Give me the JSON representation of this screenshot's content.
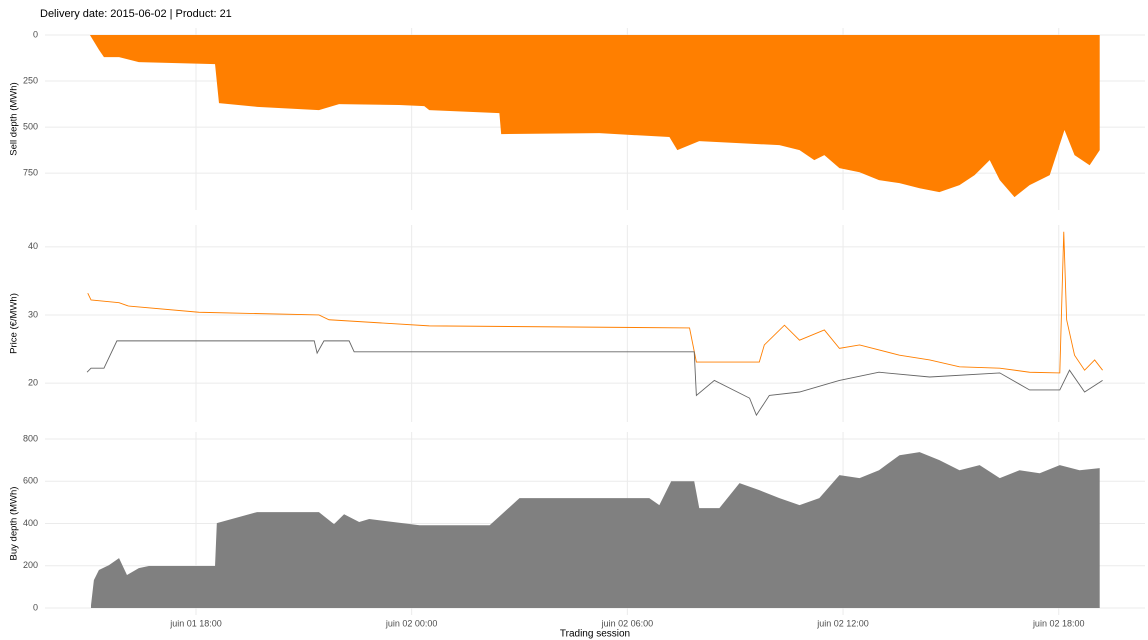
{
  "chart_data": [
    {
      "type": "area",
      "title": "Delivery date: 2015-06-02 | Product: 21",
      "ylabel": "Sell depth (MWh)",
      "color": "#ff7f00",
      "x": [
        15.05,
        15.3,
        15.44,
        15.86,
        16.41,
        18.53,
        18.64,
        19.7,
        21.42,
        21.98,
        23.65,
        24.35,
        24.49,
        26.44,
        26.49,
        29.22,
        31.17,
        31.39,
        32.0,
        34.23,
        34.79,
        35.2,
        35.48,
        35.9,
        36.46,
        37.0,
        37.57,
        38.13,
        38.68,
        39.24,
        39.66,
        40.08,
        40.36,
        40.77,
        41.19,
        41.75,
        42.16,
        42.44,
        42.86,
        43.14
      ],
      "values": [
        0,
        80,
        120,
        120,
        147,
        158,
        370,
        390,
        408,
        375,
        380,
        386,
        408,
        424,
        538,
        533,
        554,
        625,
        576,
        598,
        625,
        679,
        652,
        723,
        745,
        788,
        804,
        832,
        853,
        815,
        761,
        679,
        788,
        880,
        815,
        761,
        516,
        652,
        707,
        625
      ],
      "xlim": [
        13.8,
        44.4
      ],
      "xticks": [
        18,
        24,
        30,
        36,
        42
      ],
      "ylim": [
        950,
        -38
      ],
      "yticks": [
        0,
        250,
        500,
        750
      ]
    },
    {
      "type": "line",
      "ylabel": "Price (€/MWh)",
      "xlim": [
        13.8,
        44.4
      ],
      "xticks": [
        18,
        24,
        30,
        36,
        42
      ],
      "ylim": [
        14.3,
        43.2
      ],
      "yticks": [
        20,
        30,
        40
      ],
      "series": [
        {
          "color": "#ff7f00",
          "x": [
            14.99,
            15.08,
            15.86,
            16.13,
            18.08,
            21.42,
            21.7,
            24.49,
            31.73,
            31.92,
            33.67,
            33.81,
            34.37,
            34.79,
            35.48,
            35.9,
            36.46,
            37.57,
            38.41,
            39.24,
            40.36,
            41.19,
            42.03,
            42.14,
            42.22,
            42.44,
            42.72,
            43.0,
            43.22
          ],
          "values": [
            33.2,
            32.2,
            31.8,
            31.3,
            30.4,
            30.0,
            29.3,
            28.4,
            28.1,
            23.1,
            23.1,
            25.6,
            28.5,
            26.3,
            27.8,
            25.1,
            25.6,
            24.1,
            23.4,
            22.4,
            22.2,
            21.6,
            21.5,
            42.2,
            29.3,
            24.1,
            21.9,
            23.4,
            21.9
          ]
        },
        {
          "color": "#666666",
          "x": [
            14.97,
            15.08,
            15.44,
            15.8,
            21.29,
            21.37,
            21.56,
            22.26,
            22.4,
            31.86,
            31.92,
            32.42,
            33.4,
            33.59,
            33.95,
            34.79,
            35.9,
            37.0,
            38.41,
            40.36,
            41.19,
            42.03,
            42.3,
            42.72,
            43.22
          ],
          "values": [
            21.6,
            22.2,
            22.2,
            26.2,
            26.2,
            24.4,
            26.2,
            26.2,
            24.6,
            24.6,
            18.2,
            20.4,
            17.8,
            15.3,
            18.2,
            18.7,
            20.4,
            21.6,
            20.9,
            21.5,
            19.0,
            19.0,
            21.9,
            18.7,
            20.4
          ]
        }
      ]
    },
    {
      "type": "area",
      "ylabel": "Buy depth (MWh)",
      "xlabel": "Trading session",
      "color": "#808080",
      "x": [
        15.08,
        15.16,
        15.3,
        15.58,
        15.86,
        16.08,
        16.41,
        16.69,
        18.53,
        18.58,
        19.7,
        21.42,
        21.84,
        22.12,
        22.54,
        22.82,
        24.22,
        26.17,
        27.0,
        30.61,
        30.89,
        31.22,
        31.86,
        32.0,
        32.56,
        33.12,
        33.67,
        34.23,
        34.79,
        35.34,
        35.9,
        36.46,
        37.0,
        37.57,
        38.13,
        38.68,
        39.24,
        39.8,
        40.36,
        40.91,
        41.47,
        42.03,
        42.58,
        43.14
      ],
      "values": [
        14,
        132,
        180,
        203,
        236,
        156,
        189,
        199,
        199,
        402,
        454,
        454,
        397,
        444,
        407,
        421,
        392,
        392,
        520,
        520,
        487,
        600,
        600,
        473,
        473,
        591,
        558,
        520,
        487,
        520,
        629,
        615,
        652,
        723,
        738,
        700,
        652,
        676,
        615,
        652,
        638,
        676,
        652,
        662
      ],
      "xlim": [
        13.8,
        44.4
      ],
      "xticks": [
        {
          "value": 18,
          "label": "juin 01 18:00"
        },
        {
          "value": 24,
          "label": "juin 02 00:00"
        },
        {
          "value": 30,
          "label": "juin 02 06:00"
        },
        {
          "value": 36,
          "label": "juin 02 12:00"
        },
        {
          "value": 42,
          "label": "juin 02 18:00"
        }
      ],
      "ylim": [
        -33,
        833
      ],
      "yticks": [
        0,
        200,
        400,
        600,
        800
      ]
    }
  ]
}
